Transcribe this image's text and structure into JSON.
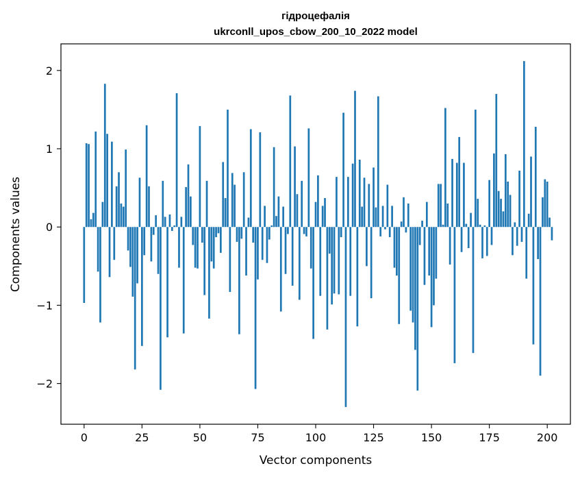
{
  "chart_data": {
    "type": "bar",
    "title_line1": "гідроцефалія",
    "title_line2": "ukrconll_upos_cbow_200_10_2022 model",
    "xlabel": "Vector components",
    "ylabel": "Components values",
    "xlim": [
      -10,
      210
    ],
    "ylim": [
      -2.52,
      2.34
    ],
    "xticks": [
      0,
      25,
      50,
      75,
      100,
      125,
      150,
      175,
      200
    ],
    "xtick_labels": [
      "0",
      "25",
      "50",
      "75",
      "100",
      "125",
      "150",
      "175",
      "200"
    ],
    "yticks": [
      -2,
      -1,
      0,
      1,
      2
    ],
    "ytick_labels": [
      "−2",
      "−1",
      "0",
      "1",
      "2"
    ],
    "bar_color": "#1f77b4",
    "values": [
      -0.97,
      1.07,
      1.06,
      0.1,
      0.18,
      1.22,
      -0.57,
      -1.22,
      0.32,
      1.83,
      1.19,
      -0.64,
      1.09,
      -0.42,
      0.52,
      0.7,
      0.3,
      0.26,
      0.99,
      -0.3,
      -0.51,
      -0.89,
      -1.82,
      -0.72,
      0.63,
      -1.52,
      -0.36,
      1.3,
      0.52,
      -0.44,
      -0.1,
      0.15,
      -0.6,
      -2.08,
      0.59,
      0.13,
      -1.41,
      0.16,
      -0.05,
      0.02,
      1.71,
      -0.52,
      0.13,
      -1.36,
      0.51,
      0.8,
      0.39,
      -0.23,
      -0.52,
      -0.53,
      1.29,
      -0.2,
      -0.87,
      0.59,
      -1.17,
      -0.44,
      -0.53,
      -0.13,
      -0.08,
      -0.33,
      0.83,
      0.37,
      1.5,
      -0.83,
      0.69,
      0.54,
      -0.19,
      -1.37,
      -0.15,
      0.7,
      -0.62,
      0.12,
      1.25,
      -0.2,
      -2.07,
      -0.67,
      1.21,
      -0.42,
      0.27,
      -0.46,
      -0.16,
      0.02,
      1.02,
      0.14,
      0.39,
      -1.08,
      0.26,
      -0.6,
      -0.09,
      1.68,
      -0.75,
      1.03,
      0.42,
      -0.93,
      0.59,
      -0.09,
      -0.12,
      1.26,
      -0.53,
      -1.43,
      0.32,
      0.66,
      -0.88,
      0.27,
      0.37,
      -1.31,
      -0.34,
      -0.99,
      -0.85,
      0.64,
      -0.86,
      -0.13,
      1.46,
      -2.3,
      0.64,
      -0.88,
      0.81,
      1.74,
      -1.27,
      0.86,
      0.26,
      0.63,
      -0.5,
      0.55,
      -0.91,
      0.76,
      0.25,
      1.67,
      -0.12,
      0.27,
      -0.03,
      0.54,
      -0.13,
      0.27,
      -0.52,
      -0.62,
      -1.24,
      0.07,
      0.38,
      -0.07,
      0.3,
      -1.07,
      -1.22,
      -1.57,
      -2.09,
      -0.23,
      0.08,
      -0.74,
      0.32,
      -0.62,
      -1.28,
      -1.0,
      -0.66,
      0.55,
      0.55,
      0.03,
      1.52,
      0.3,
      -0.48,
      0.87,
      -1.74,
      0.82,
      1.15,
      -0.32,
      0.82,
      0.04,
      -0.27,
      0.18,
      -1.61,
      1.5,
      0.36,
      0.03,
      -0.4,
      0.02,
      -0.37,
      0.6,
      -0.23,
      0.94,
      1.7,
      0.46,
      0.36,
      0.2,
      0.93,
      0.58,
      0.41,
      -0.36,
      0.06,
      -0.24,
      0.72,
      -0.19,
      2.12,
      -0.66,
      0.17,
      0.9,
      -1.5,
      1.28,
      -0.41,
      -1.9,
      0.38,
      0.61,
      0.58,
      0.12,
      -0.17
    ]
  }
}
